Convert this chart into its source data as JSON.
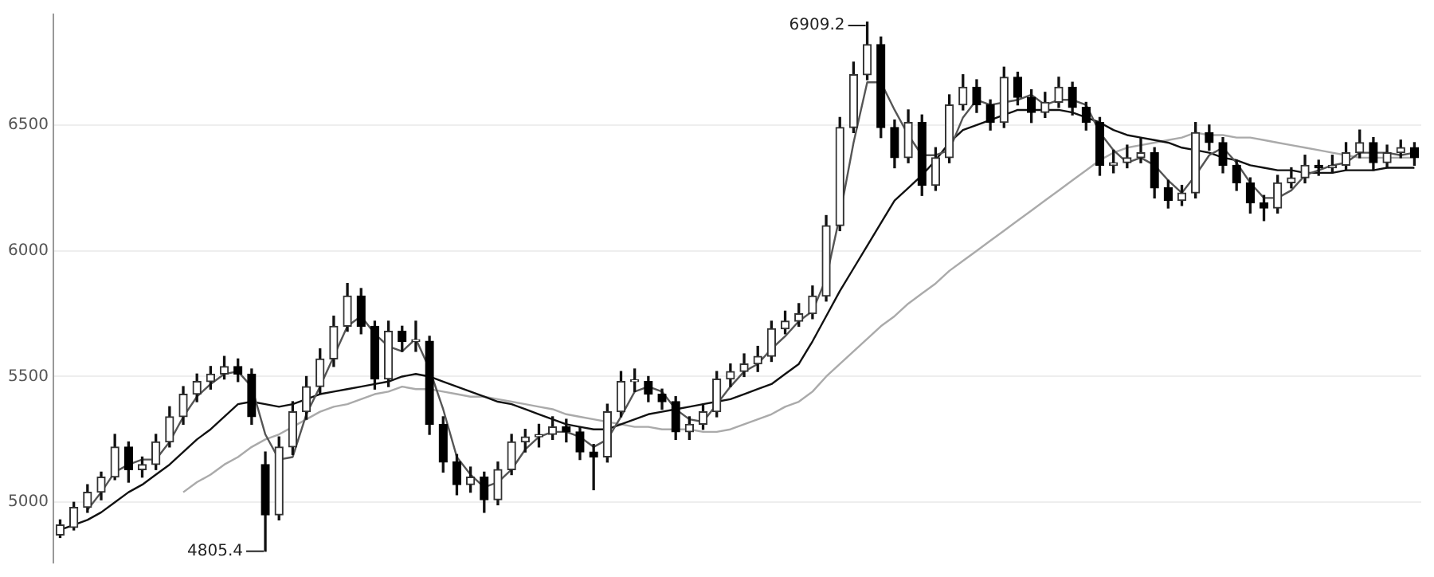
{
  "chart_data": {
    "type": "candlestick",
    "categories": [
      null,
      null,
      null,
      null,
      null,
      null,
      null,
      null,
      null,
      null,
      null,
      null,
      null,
      null,
      null,
      null,
      null,
      null,
      null,
      null,
      null,
      null,
      null,
      null,
      null,
      null,
      null,
      null,
      null,
      null,
      null,
      null,
      null,
      null,
      null,
      null,
      null,
      null,
      null,
      null,
      null,
      null,
      null,
      null,
      null,
      null,
      null,
      null,
      null,
      null,
      null,
      null,
      null,
      null,
      null,
      null,
      null,
      null,
      null,
      null,
      null,
      null,
      null,
      null,
      null,
      null,
      null,
      null,
      null,
      null,
      null,
      null,
      null,
      null,
      null,
      null,
      null,
      null,
      null,
      null,
      null,
      null,
      null,
      null,
      null,
      null,
      null,
      null,
      null,
      null,
      null,
      null,
      null,
      null,
      null,
      null,
      null,
      null,
      null,
      null
    ],
    "ohlc": [
      [
        4870,
        4930,
        4860,
        4910
      ],
      [
        4900,
        5000,
        4890,
        4980
      ],
      [
        4980,
        5070,
        4960,
        5040
      ],
      [
        5040,
        5120,
        5010,
        5100
      ],
      [
        5100,
        5270,
        5090,
        5220
      ],
      [
        5220,
        5240,
        5080,
        5130
      ],
      [
        5130,
        5180,
        5100,
        5150
      ],
      [
        5150,
        5270,
        5130,
        5240
      ],
      [
        5240,
        5380,
        5220,
        5340
      ],
      [
        5340,
        5460,
        5310,
        5430
      ],
      [
        5430,
        5510,
        5400,
        5480
      ],
      [
        5480,
        5540,
        5450,
        5510
      ],
      [
        5510,
        5580,
        5490,
        5540
      ],
      [
        5540,
        5570,
        5480,
        5510
      ],
      [
        5510,
        5530,
        5310,
        5340
      ],
      [
        5150,
        5200,
        4805.4,
        4950
      ],
      [
        4950,
        5260,
        4930,
        5220
      ],
      [
        5220,
        5400,
        5190,
        5360
      ],
      [
        5360,
        5500,
        5330,
        5460
      ],
      [
        5460,
        5610,
        5430,
        5570
      ],
      [
        5570,
        5740,
        5540,
        5700
      ],
      [
        5700,
        5870,
        5680,
        5820
      ],
      [
        5820,
        5850,
        5670,
        5700
      ],
      [
        5700,
        5720,
        5450,
        5490
      ],
      [
        5490,
        5720,
        5460,
        5680
      ],
      [
        5680,
        5700,
        5600,
        5640
      ],
      [
        5640,
        5720,
        5600,
        5640
      ],
      [
        5640,
        5660,
        5270,
        5310
      ],
      [
        5310,
        5340,
        5120,
        5160
      ],
      [
        5160,
        5190,
        5030,
        5070
      ],
      [
        5070,
        5140,
        5040,
        5100
      ],
      [
        5100,
        5120,
        4960,
        5010
      ],
      [
        5010,
        5160,
        4990,
        5130
      ],
      [
        5130,
        5270,
        5110,
        5240
      ],
      [
        5240,
        5290,
        5200,
        5260
      ],
      [
        5260,
        5310,
        5220,
        5270
      ],
      [
        5270,
        5340,
        5250,
        5300
      ],
      [
        5300,
        5330,
        5240,
        5280
      ],
      [
        5280,
        5300,
        5170,
        5200
      ],
      [
        5200,
        5230,
        5050,
        5180
      ],
      [
        5180,
        5390,
        5160,
        5360
      ],
      [
        5360,
        5520,
        5340,
        5480
      ],
      [
        5480,
        5530,
        5440,
        5480
      ],
      [
        5480,
        5500,
        5400,
        5430
      ],
      [
        5430,
        5450,
        5370,
        5400
      ],
      [
        5400,
        5420,
        5250,
        5280
      ],
      [
        5280,
        5340,
        5250,
        5310
      ],
      [
        5310,
        5390,
        5290,
        5360
      ],
      [
        5360,
        5520,
        5340,
        5490
      ],
      [
        5490,
        5550,
        5460,
        5520
      ],
      [
        5520,
        5590,
        5500,
        5550
      ],
      [
        5550,
        5620,
        5520,
        5580
      ],
      [
        5580,
        5720,
        5560,
        5690
      ],
      [
        5690,
        5760,
        5670,
        5720
      ],
      [
        5720,
        5790,
        5700,
        5750
      ],
      [
        5750,
        5860,
        5730,
        5820
      ],
      [
        5820,
        6140,
        5800,
        6100
      ],
      [
        6100,
        6530,
        6080,
        6490
      ],
      [
        6490,
        6750,
        6470,
        6700
      ],
      [
        6700,
        6909.2,
        6680,
        6820
      ],
      [
        6820,
        6850,
        6450,
        6490
      ],
      [
        6490,
        6520,
        6330,
        6370
      ],
      [
        6370,
        6560,
        6350,
        6510
      ],
      [
        6510,
        6540,
        6220,
        6260
      ],
      [
        6260,
        6410,
        6240,
        6370
      ],
      [
        6370,
        6620,
        6350,
        6580
      ],
      [
        6580,
        6700,
        6560,
        6650
      ],
      [
        6650,
        6680,
        6550,
        6580
      ],
      [
        6580,
        6600,
        6480,
        6510
      ],
      [
        6510,
        6730,
        6490,
        6690
      ],
      [
        6690,
        6710,
        6580,
        6610
      ],
      [
        6610,
        6640,
        6510,
        6550
      ],
      [
        6550,
        6630,
        6530,
        6590
      ],
      [
        6590,
        6690,
        6570,
        6650
      ],
      [
        6650,
        6670,
        6540,
        6570
      ],
      [
        6570,
        6590,
        6480,
        6510
      ],
      [
        6510,
        6530,
        6300,
        6340
      ],
      [
        6340,
        6400,
        6310,
        6350
      ],
      [
        6350,
        6420,
        6330,
        6370
      ],
      [
        6370,
        6450,
        6350,
        6390
      ],
      [
        6390,
        6410,
        6210,
        6250
      ],
      [
        6250,
        6280,
        6170,
        6200
      ],
      [
        6200,
        6260,
        6180,
        6230
      ],
      [
        6230,
        6510,
        6210,
        6470
      ],
      [
        6470,
        6500,
        6400,
        6430
      ],
      [
        6430,
        6450,
        6310,
        6340
      ],
      [
        6340,
        6360,
        6240,
        6270
      ],
      [
        6270,
        6290,
        6150,
        6190
      ],
      [
        6190,
        6220,
        6120,
        6170
      ],
      [
        6170,
        6300,
        6150,
        6270
      ],
      [
        6270,
        6330,
        6250,
        6290
      ],
      [
        6290,
        6380,
        6270,
        6340
      ],
      [
        6340,
        6360,
        6300,
        6330
      ],
      [
        6330,
        6380,
        6310,
        6340
      ],
      [
        6340,
        6430,
        6320,
        6390
      ],
      [
        6390,
        6480,
        6370,
        6430
      ],
      [
        6430,
        6450,
        6320,
        6350
      ],
      [
        6350,
        6420,
        6330,
        6390
      ],
      [
        6390,
        6440,
        6370,
        6410
      ],
      [
        6410,
        6430,
        6340,
        6370
      ]
    ],
    "series": [
      {
        "type": "line",
        "color": "#555555",
        "values": [
          null,
          null,
          4970,
          5040,
          5120,
          5150,
          5170,
          5170,
          5240,
          5340,
          5420,
          5470,
          5510,
          5520,
          5460,
          5270,
          5170,
          5180,
          5350,
          5460,
          5580,
          5700,
          5740,
          5670,
          5620,
          5600,
          5650,
          5530,
          5370,
          5180,
          5110,
          5060,
          5080,
          5130,
          5210,
          5260,
          5280,
          5280,
          5260,
          5220,
          5250,
          5340,
          5440,
          5460,
          5440,
          5370,
          5330,
          5320,
          5390,
          5460,
          5520,
          5550,
          5610,
          5660,
          5720,
          5760,
          5890,
          6140,
          6430,
          6670,
          6670,
          6560,
          6460,
          6380,
          6380,
          6400,
          6530,
          6600,
          6580,
          6590,
          6600,
          6620,
          6580,
          6600,
          6600,
          6580,
          6470,
          6400,
          6350,
          6370,
          6340,
          6280,
          6230,
          6300,
          6380,
          6410,
          6350,
          6270,
          6210,
          6210,
          6240,
          6300,
          6320,
          6340,
          6350,
          6390,
          6390,
          6390,
          6380,
          6390
        ]
      },
      {
        "type": "line",
        "color": "#111111",
        "values": [
          4890,
          4910,
          4930,
          4960,
          5000,
          5040,
          5070,
          5110,
          5150,
          5200,
          5250,
          5290,
          5340,
          5390,
          5400,
          5390,
          5380,
          5390,
          5410,
          5430,
          5440,
          5450,
          5460,
          5470,
          5480,
          5500,
          5510,
          5500,
          5480,
          5460,
          5440,
          5420,
          5400,
          5390,
          5370,
          5350,
          5330,
          5310,
          5300,
          5290,
          5290,
          5310,
          5330,
          5350,
          5360,
          5370,
          5380,
          5390,
          5400,
          5410,
          5430,
          5450,
          5470,
          5510,
          5550,
          5640,
          5740,
          5840,
          5930,
          6020,
          6110,
          6200,
          6250,
          6300,
          6360,
          6430,
          6480,
          6500,
          6520,
          6540,
          6560,
          6560,
          6560,
          6560,
          6550,
          6530,
          6510,
          6480,
          6460,
          6450,
          6440,
          6430,
          6410,
          6400,
          6390,
          6370,
          6360,
          6340,
          6330,
          6320,
          6320,
          6310,
          6310,
          6310,
          6320,
          6320,
          6320,
          6330,
          6330,
          6330
        ]
      },
      {
        "type": "line",
        "color": "#aaaaaa",
        "values": [
          null,
          null,
          null,
          null,
          null,
          null,
          null,
          null,
          null,
          5040,
          5080,
          5110,
          5150,
          5180,
          5220,
          5250,
          5270,
          5300,
          5330,
          5360,
          5380,
          5390,
          5410,
          5430,
          5440,
          5460,
          5450,
          5450,
          5440,
          5430,
          5420,
          5420,
          5410,
          5400,
          5390,
          5380,
          5370,
          5350,
          5340,
          5330,
          5320,
          5310,
          5300,
          5300,
          5290,
          5290,
          5290,
          5280,
          5280,
          5290,
          5310,
          5330,
          5350,
          5380,
          5400,
          5440,
          5500,
          5550,
          5600,
          5650,
          5700,
          5740,
          5790,
          5830,
          5870,
          5920,
          5960,
          6000,
          6040,
          6080,
          6120,
          6160,
          6200,
          6240,
          6280,
          6320,
          6360,
          6390,
          6410,
          6420,
          6430,
          6440,
          6450,
          6470,
          6460,
          6460,
          6450,
          6450,
          6440,
          6430,
          6420,
          6410,
          6400,
          6390,
          6380,
          6370,
          6370,
          6370,
          6370,
          6370
        ]
      }
    ],
    "ylim": [
      4760,
      6940
    ],
    "yticks": [
      5000,
      5500,
      6000,
      6500
    ],
    "grid": "y",
    "tick_labels": "y",
    "legend": false,
    "marker": "none",
    "line_style": "solid",
    "annotations": [
      "6909.2",
      "4805.4"
    ]
  }
}
